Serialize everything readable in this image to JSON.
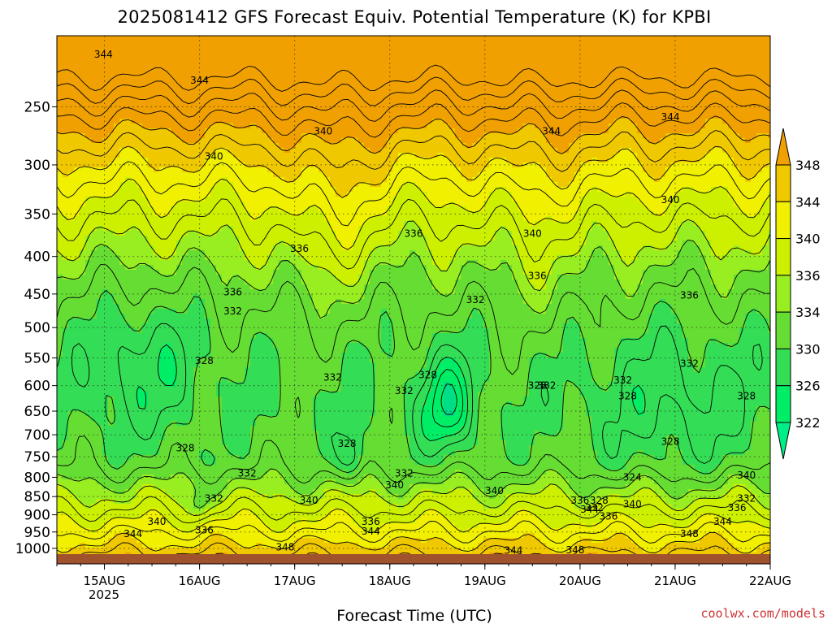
{
  "title": "2025081412 GFS Forecast Equiv. Potential Temperature (K) for KPBI",
  "xlabel": "Forecast Time (UTC)",
  "credit": "coolwx.com/models",
  "chart_data": {
    "type": "heatmap",
    "title": "2025081412 GFS Forecast Equiv. Potential Temperature (K) for KPBI",
    "xlabel": "Forecast Time (UTC)",
    "ylabel": "",
    "x_ticks": [
      "15AUG",
      "16AUG",
      "17AUG",
      "18AUG",
      "19AUG",
      "20AUG",
      "21AUG",
      "22AUG"
    ],
    "x_year_label": "2025",
    "y_ticks": [
      250,
      300,
      350,
      400,
      450,
      500,
      550,
      600,
      650,
      700,
      750,
      800,
      850,
      900,
      950,
      1000
    ],
    "y_scale": "log-pressure (inverted)",
    "colorbar_levels": [
      322,
      326,
      330,
      334,
      336,
      340,
      344,
      348
    ],
    "colorbar_colors": [
      "#00ee66",
      "#33dd55",
      "#66dd33",
      "#99ee22",
      "#ccf000",
      "#f0f000",
      "#f0c800",
      "#f0a000"
    ],
    "contour_labels": [
      {
        "value": 344,
        "x_day": 14.99,
        "p": 212
      },
      {
        "value": 344,
        "x_day": 16.0,
        "p": 230
      },
      {
        "value": 344,
        "x_day": 19.7,
        "p": 270
      },
      {
        "value": 344,
        "x_day": 20.95,
        "p": 258
      },
      {
        "value": 340,
        "x_day": 16.15,
        "p": 292
      },
      {
        "value": 340,
        "x_day": 17.3,
        "p": 270
      },
      {
        "value": 340,
        "x_day": 19.5,
        "p": 372
      },
      {
        "value": 340,
        "x_day": 20.95,
        "p": 335
      },
      {
        "value": 336,
        "x_day": 17.05,
        "p": 390
      },
      {
        "value": 336,
        "x_day": 18.25,
        "p": 372
      },
      {
        "value": 336,
        "x_day": 19.55,
        "p": 425
      },
      {
        "value": 336,
        "x_day": 16.35,
        "p": 447
      },
      {
        "value": 336,
        "x_day": 21.15,
        "p": 452
      },
      {
        "value": 332,
        "x_day": 16.35,
        "p": 475
      },
      {
        "value": 332,
        "x_day": 18.9,
        "p": 458
      },
      {
        "value": 332,
        "x_day": 17.4,
        "p": 585
      },
      {
        "value": 332,
        "x_day": 18.15,
        "p": 610
      },
      {
        "value": 332,
        "x_day": 20.45,
        "p": 590
      },
      {
        "value": 332,
        "x_day": 21.15,
        "p": 560
      },
      {
        "value": 332,
        "x_day": 16.5,
        "p": 790
      },
      {
        "value": 332,
        "x_day": 16.15,
        "p": 855
      },
      {
        "value": 332,
        "x_day": 18.15,
        "p": 790
      },
      {
        "value": 332,
        "x_day": 19.65,
        "p": 600
      },
      {
        "value": 332,
        "x_day": 20.15,
        "p": 880
      },
      {
        "value": 332,
        "x_day": 21.75,
        "p": 855
      },
      {
        "value": 328,
        "x_day": 16.05,
        "p": 555
      },
      {
        "value": 328,
        "x_day": 18.4,
        "p": 580
      },
      {
        "value": 328,
        "x_day": 19.55,
        "p": 600
      },
      {
        "value": 328,
        "x_day": 20.5,
        "p": 620
      },
      {
        "value": 328,
        "x_day": 20.95,
        "p": 715
      },
      {
        "value": 328,
        "x_day": 21.75,
        "p": 620
      },
      {
        "value": 328,
        "x_day": 15.85,
        "p": 730
      },
      {
        "value": 328,
        "x_day": 20.2,
        "p": 860
      },
      {
        "value": 328,
        "x_day": 17.55,
        "p": 720
      },
      {
        "value": 324,
        "x_day": 20.55,
        "p": 800
      },
      {
        "value": 340,
        "x_day": 17.15,
        "p": 860
      },
      {
        "value": 340,
        "x_day": 18.05,
        "p": 820
      },
      {
        "value": 340,
        "x_day": 19.1,
        "p": 835
      },
      {
        "value": 340,
        "x_day": 20.55,
        "p": 870
      },
      {
        "value": 340,
        "x_day": 21.75,
        "p": 795
      },
      {
        "value": 340,
        "x_day": 15.55,
        "p": 920
      },
      {
        "value": 336,
        "x_day": 20.0,
        "p": 860
      },
      {
        "value": 336,
        "x_day": 20.3,
        "p": 905
      },
      {
        "value": 336,
        "x_day": 21.65,
        "p": 880
      },
      {
        "value": 336,
        "x_day": 17.8,
        "p": 920
      },
      {
        "value": 336,
        "x_day": 16.05,
        "p": 945
      },
      {
        "value": 344,
        "x_day": 20.1,
        "p": 885
      },
      {
        "value": 344,
        "x_day": 17.8,
        "p": 948
      },
      {
        "value": 344,
        "x_day": 21.5,
        "p": 920
      },
      {
        "value": 344,
        "x_day": 15.3,
        "p": 955
      },
      {
        "value": 344,
        "x_day": 19.3,
        "p": 1007
      },
      {
        "value": 348,
        "x_day": 21.15,
        "p": 955
      },
      {
        "value": 348,
        "x_day": 16.9,
        "p": 997
      },
      {
        "value": 348,
        "x_day": 19.95,
        "p": 1005
      }
    ]
  }
}
